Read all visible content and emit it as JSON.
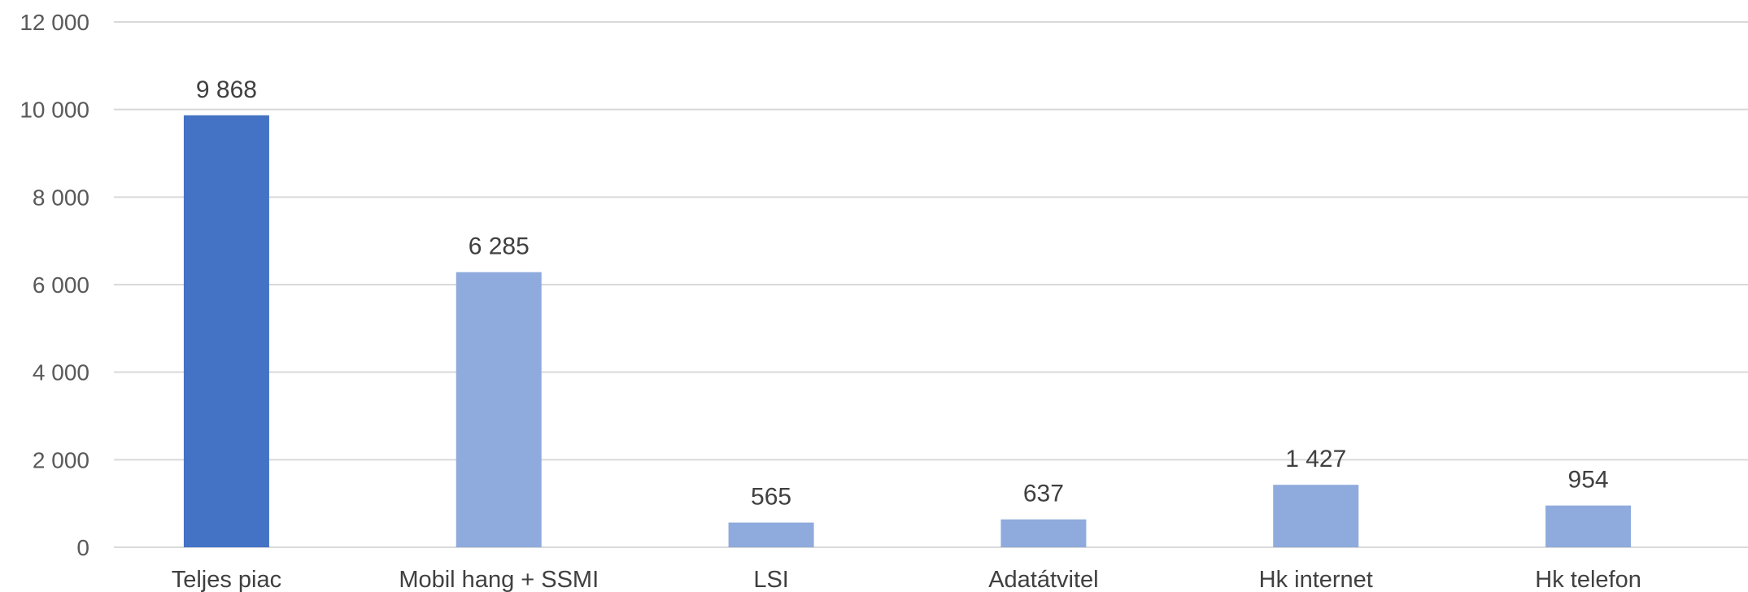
{
  "chart_data": {
    "type": "bar",
    "title": "",
    "xlabel": "",
    "ylabel": "",
    "categories": [
      "Teljes piac",
      "Mobil hang + SSMI",
      "LSI",
      "Adatátvitel",
      "Hk internet",
      "Hk telefon"
    ],
    "values": [
      9868,
      6285,
      565,
      637,
      1427,
      954
    ],
    "value_labels": [
      "9 868",
      "6 285",
      "565",
      "637",
      "1 427",
      "954"
    ],
    "ylim": [
      0,
      12000
    ],
    "yticks": [
      0,
      2000,
      4000,
      6000,
      8000,
      10000,
      12000
    ],
    "ytick_labels": [
      "0",
      "2 000",
      "4 000",
      "6 000",
      "8 000",
      "10 000",
      "12 000"
    ],
    "grid": true,
    "legend": "none",
    "bar_colors": [
      "#4472c4",
      "#8faadc",
      "#8faadc",
      "#8faadc",
      "#8faadc",
      "#8faadc"
    ]
  }
}
